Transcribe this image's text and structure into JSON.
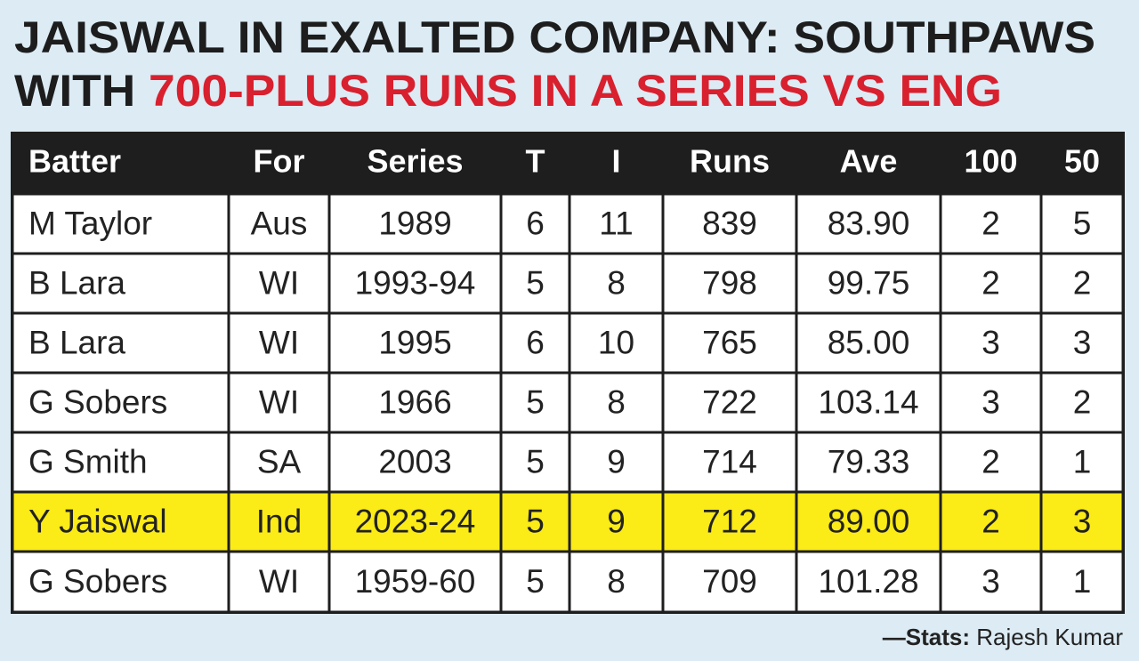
{
  "header": {
    "title_line1": "JAISWAL IN EXALTED COMPANY: SOUTHPAWS",
    "title_line2_prefix": "WITH",
    "title_line2_highlight": "700-PLUS RUNS IN A SERIES VS ENG"
  },
  "table": {
    "columns": [
      "Batter",
      "For",
      "Series",
      "T",
      "I",
      "Runs",
      "Ave",
      "100",
      "50"
    ],
    "rows": [
      [
        "M Taylor",
        "Aus",
        "1989",
        "6",
        "11",
        "839",
        "83.90",
        "2",
        "5"
      ],
      [
        "B Lara",
        "WI",
        "1993-94",
        "5",
        "8",
        "798",
        "99.75",
        "2",
        "2"
      ],
      [
        "B Lara",
        "WI",
        "1995",
        "6",
        "10",
        "765",
        "85.00",
        "3",
        "3"
      ],
      [
        "G Sobers",
        "WI",
        "1966",
        "5",
        "8",
        "722",
        "103.14",
        "3",
        "2"
      ],
      [
        "G Smith",
        "SA",
        "2003",
        "5",
        "9",
        "714",
        "79.33",
        "2",
        "1"
      ],
      [
        "Y Jaiswal",
        "Ind",
        "2023-24",
        "5",
        "9",
        "712",
        "89.00",
        "2",
        "3"
      ],
      [
        "G Sobers",
        "WI",
        "1959-60",
        "5",
        "8",
        "709",
        "101.28",
        "3",
        "1"
      ]
    ],
    "highlight_row": 5,
    "highlight_color": "#fbeb16"
  },
  "footer": {
    "credit_label": "—Stats:",
    "credit_name": "Rajesh Kumar"
  }
}
